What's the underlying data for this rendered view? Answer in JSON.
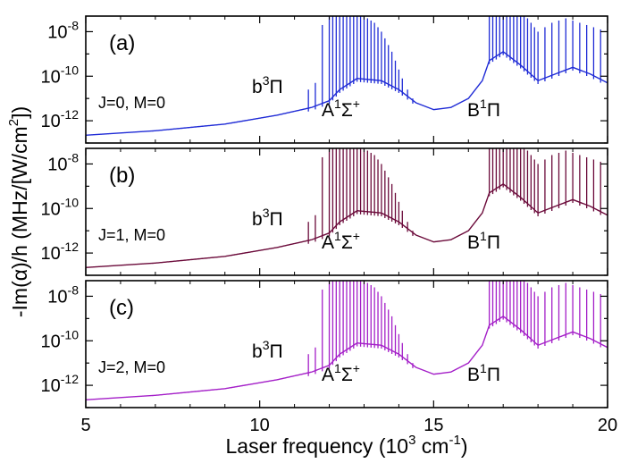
{
  "chart_data": {
    "type": "line",
    "xlabel": "Laser frequency (10",
    "xlabel_exp": "3",
    "xlabel_unit": " cm",
    "xlabel_unit_exp": "-1",
    "xlabel_close": ")",
    "ylabel": "-Im(α)/h  (MHz/[W/cm",
    "ylabel_exp": "2",
    "ylabel_close": "])",
    "xlim": [
      5,
      20
    ],
    "x_ticks": [
      5,
      10,
      15,
      20
    ],
    "x_tick_labels": [
      "5",
      "10",
      "15",
      "20"
    ],
    "y_scale": "log",
    "ylim_log10": [
      -13,
      -7.3
    ],
    "y_tick_mantissa": "10",
    "y_tick_exps": [
      "-8",
      "-10",
      "-12"
    ],
    "y_tick_values_log10": [
      -8,
      -10,
      -12
    ],
    "series": [
      {
        "panel_label": "(a)",
        "name": "J=0, M=0",
        "color": "#1f2bd6",
        "labels": {
          "b_state": "b",
          "b_sup": "3",
          "b_sym": "Π",
          "A_state": "A",
          "A_sup": "1",
          "A_sym": "Σ",
          "A_sup2": "+",
          "B_state": "B",
          "B_sup": "1",
          "B_sym": "Π"
        },
        "baseline_log10": [
          [
            5.0,
            -12.65
          ],
          [
            7.0,
            -12.45
          ],
          [
            9.0,
            -12.15
          ],
          [
            10.5,
            -11.75
          ],
          [
            11.5,
            -11.4
          ],
          [
            12.0,
            -11.1
          ],
          [
            12.3,
            -10.6
          ],
          [
            12.8,
            -10.1
          ],
          [
            13.5,
            -10.2
          ],
          [
            14.0,
            -10.6
          ],
          [
            14.5,
            -11.2
          ],
          [
            15.0,
            -11.5
          ],
          [
            15.5,
            -11.4
          ],
          [
            16.0,
            -11.0
          ],
          [
            16.4,
            -10.2
          ],
          [
            16.6,
            -9.3
          ],
          [
            17.0,
            -8.9
          ],
          [
            17.5,
            -9.5
          ],
          [
            18.0,
            -10.2
          ],
          [
            18.5,
            -9.9
          ],
          [
            19.0,
            -9.6
          ],
          [
            19.5,
            -9.9
          ],
          [
            20.0,
            -10.3
          ]
        ],
        "spikes_x": [
          11.4,
          11.6,
          11.8,
          12.0,
          12.1,
          12.2,
          12.3,
          12.4,
          12.5,
          12.6,
          12.7,
          12.8,
          12.9,
          13.0,
          13.1,
          13.2,
          13.3,
          13.4,
          13.5,
          13.6,
          13.7,
          13.8,
          13.9,
          14.0,
          14.1,
          14.25,
          14.4,
          16.6,
          16.7,
          16.8,
          16.9,
          17.0,
          17.1,
          17.2,
          17.3,
          17.4,
          17.5,
          17.6,
          17.7,
          17.8,
          17.9,
          18.0,
          18.2,
          18.4,
          18.6,
          18.8,
          19.0,
          19.2,
          19.4,
          19.6,
          19.8
        ],
        "spikes_top_log10": [
          -10.6,
          -10.3,
          -7.7,
          -7.3,
          -7.3,
          -7.3,
          -7.3,
          -7.3,
          -7.3,
          -7.3,
          -7.3,
          -7.3,
          -7.3,
          -7.3,
          -7.4,
          -7.5,
          -7.6,
          -7.8,
          -8.0,
          -8.3,
          -8.6,
          -8.9,
          -9.3,
          -9.7,
          -10.1,
          -10.6,
          -11.0,
          -7.3,
          -7.3,
          -7.3,
          -7.3,
          -7.3,
          -7.3,
          -7.3,
          -7.3,
          -7.3,
          -7.3,
          -7.3,
          -7.4,
          -7.6,
          -7.8,
          -8.0,
          -7.8,
          -7.6,
          -7.5,
          -7.4,
          -7.5,
          -7.6,
          -7.7,
          -7.8,
          -7.9
        ]
      },
      {
        "panel_label": "(b)",
        "name": "J=1, M=0",
        "color": "#6b0a3a",
        "labels": {
          "b_state": "b",
          "b_sup": "3",
          "b_sym": "Π",
          "A_state": "A",
          "A_sup": "1",
          "A_sym": "Σ",
          "A_sup2": "+",
          "B_state": "B",
          "B_sup": "1",
          "B_sym": "Π"
        },
        "baseline_log10": [
          [
            5.0,
            -12.65
          ],
          [
            7.0,
            -12.45
          ],
          [
            9.0,
            -12.15
          ],
          [
            10.5,
            -11.75
          ],
          [
            11.5,
            -11.4
          ],
          [
            12.0,
            -11.1
          ],
          [
            12.3,
            -10.6
          ],
          [
            12.8,
            -10.1
          ],
          [
            13.5,
            -10.2
          ],
          [
            14.0,
            -10.6
          ],
          [
            14.5,
            -11.2
          ],
          [
            15.0,
            -11.5
          ],
          [
            15.5,
            -11.4
          ],
          [
            16.0,
            -11.0
          ],
          [
            16.4,
            -10.2
          ],
          [
            16.6,
            -9.3
          ],
          [
            17.0,
            -8.9
          ],
          [
            17.5,
            -9.5
          ],
          [
            18.0,
            -10.2
          ],
          [
            18.5,
            -9.9
          ],
          [
            19.0,
            -9.6
          ],
          [
            19.5,
            -9.9
          ],
          [
            20.0,
            -10.3
          ]
        ],
        "spikes_x": [
          11.4,
          11.6,
          11.8,
          12.0,
          12.1,
          12.2,
          12.3,
          12.4,
          12.5,
          12.6,
          12.7,
          12.8,
          12.9,
          13.0,
          13.1,
          13.2,
          13.3,
          13.4,
          13.5,
          13.6,
          13.7,
          13.8,
          13.9,
          14.0,
          14.1,
          14.25,
          14.4,
          16.6,
          16.7,
          16.8,
          16.9,
          17.0,
          17.1,
          17.2,
          17.3,
          17.4,
          17.5,
          17.6,
          17.7,
          17.8,
          17.9,
          18.0,
          18.2,
          18.4,
          18.6,
          18.8,
          19.0,
          19.2,
          19.4,
          19.6,
          19.8
        ],
        "spikes_top_log10": [
          -10.6,
          -10.3,
          -7.7,
          -7.3,
          -7.3,
          -7.3,
          -7.3,
          -7.3,
          -7.3,
          -7.3,
          -7.3,
          -7.3,
          -7.3,
          -7.3,
          -7.4,
          -7.5,
          -7.6,
          -7.8,
          -8.0,
          -8.3,
          -8.6,
          -8.9,
          -9.3,
          -9.7,
          -10.1,
          -10.6,
          -11.0,
          -7.3,
          -7.3,
          -7.3,
          -7.3,
          -7.3,
          -7.3,
          -7.3,
          -7.3,
          -7.3,
          -7.3,
          -7.3,
          -7.4,
          -7.6,
          -7.8,
          -8.0,
          -7.8,
          -7.6,
          -7.5,
          -7.4,
          -7.5,
          -7.6,
          -7.7,
          -7.8,
          -7.9
        ]
      },
      {
        "panel_label": "(c)",
        "name": "J=2, M=0",
        "color": "#a41fc8",
        "labels": {
          "b_state": "b",
          "b_sup": "3",
          "b_sym": "Π",
          "A_state": "A",
          "A_sup": "1",
          "A_sym": "Σ",
          "A_sup2": "+",
          "B_state": "B",
          "B_sup": "1",
          "B_sym": "Π"
        },
        "baseline_log10": [
          [
            5.0,
            -12.65
          ],
          [
            7.0,
            -12.45
          ],
          [
            9.0,
            -12.15
          ],
          [
            10.5,
            -11.75
          ],
          [
            11.5,
            -11.4
          ],
          [
            12.0,
            -11.1
          ],
          [
            12.3,
            -10.6
          ],
          [
            12.8,
            -10.1
          ],
          [
            13.5,
            -10.2
          ],
          [
            14.0,
            -10.6
          ],
          [
            14.5,
            -11.2
          ],
          [
            15.0,
            -11.5
          ],
          [
            15.5,
            -11.4
          ],
          [
            16.0,
            -11.0
          ],
          [
            16.4,
            -10.2
          ],
          [
            16.6,
            -9.3
          ],
          [
            17.0,
            -8.9
          ],
          [
            17.5,
            -9.5
          ],
          [
            18.0,
            -10.2
          ],
          [
            18.5,
            -9.9
          ],
          [
            19.0,
            -9.6
          ],
          [
            19.5,
            -9.9
          ],
          [
            20.0,
            -10.3
          ]
        ],
        "spikes_x": [
          11.4,
          11.6,
          11.8,
          12.0,
          12.1,
          12.2,
          12.3,
          12.4,
          12.5,
          12.6,
          12.7,
          12.8,
          12.9,
          13.0,
          13.1,
          13.2,
          13.3,
          13.4,
          13.5,
          13.6,
          13.7,
          13.8,
          13.9,
          14.0,
          14.1,
          14.25,
          14.4,
          16.6,
          16.7,
          16.8,
          16.9,
          17.0,
          17.1,
          17.2,
          17.3,
          17.4,
          17.5,
          17.6,
          17.7,
          17.8,
          17.9,
          18.0,
          18.2,
          18.4,
          18.6,
          18.8,
          19.0,
          19.2,
          19.4,
          19.6,
          19.8
        ],
        "spikes_top_log10": [
          -10.6,
          -10.3,
          -7.7,
          -7.3,
          -7.3,
          -7.3,
          -7.3,
          -7.3,
          -7.3,
          -7.3,
          -7.3,
          -7.3,
          -7.3,
          -7.3,
          -7.4,
          -7.5,
          -7.6,
          -7.8,
          -8.0,
          -8.3,
          -8.6,
          -8.9,
          -9.3,
          -9.7,
          -10.1,
          -10.6,
          -11.0,
          -7.3,
          -7.3,
          -7.3,
          -7.3,
          -7.3,
          -7.3,
          -7.3,
          -7.3,
          -7.3,
          -7.3,
          -7.3,
          -7.4,
          -7.6,
          -7.8,
          -8.0,
          -7.8,
          -7.6,
          -7.5,
          -7.4,
          -7.5,
          -7.6,
          -7.7,
          -7.8,
          -7.9
        ]
      }
    ]
  }
}
